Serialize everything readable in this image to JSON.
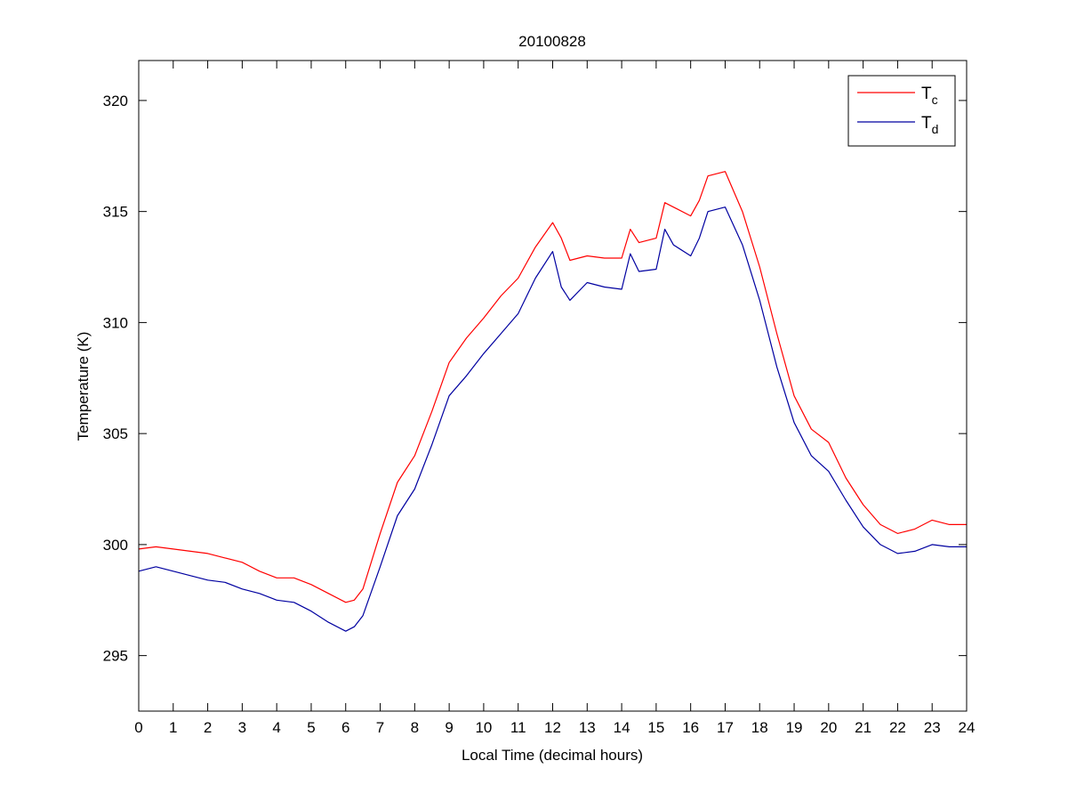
{
  "chart_data": {
    "type": "line",
    "title": "20100828",
    "xlabel": "Local Time (decimal hours)",
    "ylabel": "Temperature (K)",
    "xlim": [
      0,
      24
    ],
    "ylim": [
      292.5,
      321.8
    ],
    "xticks": [
      0,
      1,
      2,
      3,
      4,
      5,
      6,
      7,
      8,
      9,
      10,
      11,
      12,
      13,
      14,
      15,
      16,
      17,
      18,
      19,
      20,
      21,
      22,
      23,
      24
    ],
    "yticks": [
      295,
      300,
      305,
      310,
      315,
      320
    ],
    "grid": false,
    "legend_position": "top-right",
    "series": [
      {
        "name": "T",
        "subscript": "c",
        "color": "#ff0000",
        "x": [
          0,
          0.5,
          1,
          1.5,
          2,
          2.5,
          3,
          3.5,
          4,
          4.5,
          5,
          5.5,
          6,
          6.25,
          6.5,
          7,
          7.5,
          8,
          8.5,
          9,
          9.5,
          10,
          10.5,
          11,
          11.5,
          12,
          12.25,
          12.5,
          13,
          13.5,
          14,
          14.25,
          14.5,
          15,
          15.25,
          15.5,
          16,
          16.25,
          16.5,
          17,
          17.5,
          18,
          18.5,
          19,
          19.5,
          20,
          20.5,
          21,
          21.5,
          22,
          22.5,
          23,
          23.5,
          24
        ],
        "y": [
          299.8,
          299.9,
          299.8,
          299.7,
          299.6,
          299.4,
          299.2,
          298.8,
          298.5,
          298.5,
          298.2,
          297.8,
          297.4,
          297.5,
          298.0,
          300.5,
          302.8,
          304.0,
          306.0,
          308.2,
          309.3,
          310.2,
          311.2,
          312.0,
          313.4,
          314.5,
          313.8,
          312.8,
          313.0,
          312.9,
          312.9,
          314.2,
          313.6,
          313.8,
          315.4,
          315.2,
          314.8,
          315.5,
          316.6,
          316.8,
          315.0,
          312.5,
          309.5,
          306.7,
          305.2,
          304.6,
          303.0,
          301.8,
          300.9,
          300.5,
          300.7,
          301.1,
          300.9,
          300.9
        ]
      },
      {
        "name": "T",
        "subscript": "d",
        "color": "#0000a0",
        "x": [
          0,
          0.5,
          1,
          1.5,
          2,
          2.5,
          3,
          3.5,
          4,
          4.5,
          5,
          5.5,
          6,
          6.25,
          6.5,
          7,
          7.5,
          8,
          8.5,
          9,
          9.5,
          10,
          10.5,
          11,
          11.5,
          12,
          12.25,
          12.5,
          13,
          13.5,
          14,
          14.25,
          14.5,
          15,
          15.25,
          15.5,
          16,
          16.25,
          16.5,
          17,
          17.5,
          18,
          18.5,
          19,
          19.5,
          20,
          20.5,
          21,
          21.5,
          22,
          22.5,
          23,
          23.5,
          24
        ],
        "y": [
          298.8,
          299.0,
          298.8,
          298.6,
          298.4,
          298.3,
          298.0,
          297.8,
          297.5,
          297.4,
          297.0,
          296.5,
          296.1,
          296.3,
          296.8,
          299.0,
          301.3,
          302.5,
          304.5,
          306.7,
          307.6,
          308.6,
          309.5,
          310.4,
          312.0,
          313.2,
          311.6,
          311.0,
          311.8,
          311.6,
          311.5,
          313.1,
          312.3,
          312.4,
          314.2,
          313.5,
          313.0,
          313.8,
          315.0,
          315.2,
          313.5,
          311.0,
          308.0,
          305.5,
          304.0,
          303.3,
          302.0,
          300.8,
          300.0,
          299.6,
          299.7,
          300.0,
          299.9,
          299.9
        ]
      }
    ]
  }
}
